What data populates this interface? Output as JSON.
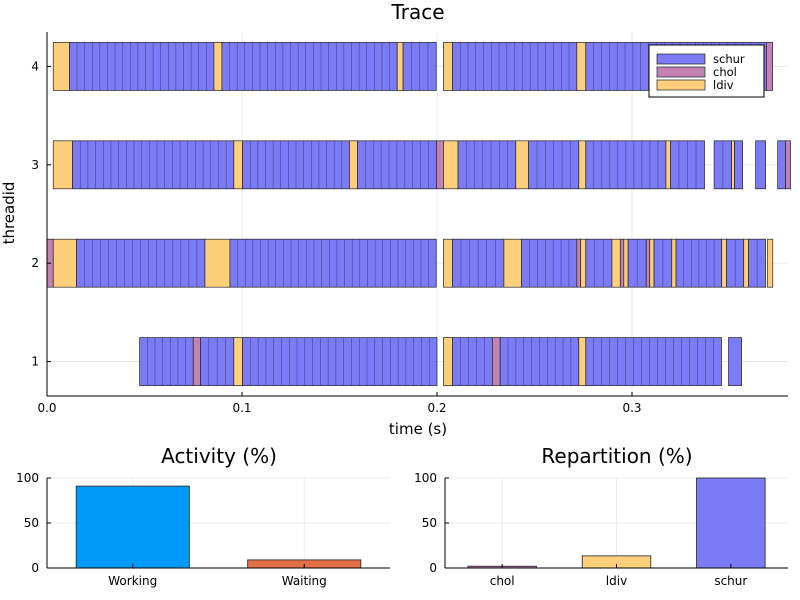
{
  "chart_data": [
    {
      "type": "timeline",
      "title": "Trace",
      "xlabel": "time (s)",
      "ylabel": "threadid",
      "xlim": [
        0,
        0.38
      ],
      "ylim": [
        0.65,
        4.35
      ],
      "xticks": [
        "0.0",
        "0.1",
        "0.2",
        "0.3"
      ],
      "yticks": [
        "1",
        "2",
        "3",
        "4"
      ],
      "grid": true,
      "legend_position": "top-right",
      "legend": [
        "schur",
        "chol",
        "ldiv"
      ],
      "colors": {
        "schur": "#7b7bf6",
        "chol": "#c083b3",
        "ldiv": "#fdcf7b"
      },
      "threads": [
        {
          "id": 4,
          "tasks": [
            {
              "kind": "ldiv",
              "start": 0.0032,
              "end": 0.0115
            },
            {
              "kind": "schur",
              "start": 0.0115,
              "end": 0.0856
            },
            {
              "kind": "ldiv",
              "start": 0.0856,
              "end": 0.0897
            },
            {
              "kind": "schur",
              "start": 0.0897,
              "end": 0.1796
            },
            {
              "kind": "ldiv",
              "start": 0.1796,
              "end": 0.1826
            },
            {
              "kind": "schur",
              "start": 0.1826,
              "end": 0.1996
            },
            {
              "kind": "ldiv",
              "start": 0.2033,
              "end": 0.2079
            },
            {
              "kind": "schur",
              "start": 0.2079,
              "end": 0.2717
            },
            {
              "kind": "ldiv",
              "start": 0.2717,
              "end": 0.2763
            },
            {
              "kind": "schur",
              "start": 0.2763,
              "end": 0.3689
            },
            {
              "kind": "chol",
              "start": 0.3689,
              "end": 0.3721
            }
          ]
        },
        {
          "id": 3,
          "tasks": [
            {
              "kind": "ldiv",
              "start": 0.0032,
              "end": 0.0131
            },
            {
              "kind": "schur",
              "start": 0.0131,
              "end": 0.0958
            },
            {
              "kind": "ldiv",
              "start": 0.0958,
              "end": 0.1003
            },
            {
              "kind": "schur",
              "start": 0.1003,
              "end": 0.1551
            },
            {
              "kind": "ldiv",
              "start": 0.1551,
              "end": 0.1592
            },
            {
              "kind": "schur",
              "start": 0.1592,
              "end": 0.1997
            },
            {
              "kind": "chol",
              "start": 0.1997,
              "end": 0.2033
            },
            {
              "kind": "ldiv",
              "start": 0.2033,
              "end": 0.2108
            },
            {
              "kind": "schur",
              "start": 0.2108,
              "end": 0.2404
            },
            {
              "kind": "ldiv",
              "start": 0.2404,
              "end": 0.247
            },
            {
              "kind": "schur",
              "start": 0.247,
              "end": 0.2727
            },
            {
              "kind": "ldiv",
              "start": 0.2727,
              "end": 0.2763
            },
            {
              "kind": "schur",
              "start": 0.2763,
              "end": 0.3174
            },
            {
              "kind": "ldiv",
              "start": 0.3174,
              "end": 0.3197
            },
            {
              "kind": "schur",
              "start": 0.3197,
              "end": 0.3372
            },
            {
              "kind": "schur",
              "start": 0.3421,
              "end": 0.3511
            },
            {
              "kind": "ldiv",
              "start": 0.3511,
              "end": 0.3526
            },
            {
              "kind": "schur",
              "start": 0.3526,
              "end": 0.3567
            },
            {
              "kind": "schur",
              "start": 0.3634,
              "end": 0.3685
            },
            {
              "kind": "schur",
              "start": 0.3747,
              "end": 0.3788
            },
            {
              "kind": "chol",
              "start": 0.3788,
              "end": 0.3813
            }
          ]
        },
        {
          "id": 2,
          "tasks": [
            {
              "kind": "chol",
              "start": 0.0,
              "end": 0.0032
            },
            {
              "kind": "ldiv",
              "start": 0.0032,
              "end": 0.0151
            },
            {
              "kind": "schur",
              "start": 0.0151,
              "end": 0.081
            },
            {
              "kind": "ldiv",
              "start": 0.081,
              "end": 0.0938
            },
            {
              "kind": "schur",
              "start": 0.0938,
              "end": 0.1996
            },
            {
              "kind": "ldiv",
              "start": 0.2033,
              "end": 0.2079
            },
            {
              "kind": "schur",
              "start": 0.2079,
              "end": 0.2343
            },
            {
              "kind": "ldiv",
              "start": 0.2343,
              "end": 0.2434
            },
            {
              "kind": "schur",
              "start": 0.2434,
              "end": 0.2717
            },
            {
              "kind": "chol",
              "start": 0.2717,
              "end": 0.2737
            },
            {
              "kind": "ldiv",
              "start": 0.2737,
              "end": 0.2763
            },
            {
              "kind": "schur",
              "start": 0.2763,
              "end": 0.2897
            },
            {
              "kind": "ldiv",
              "start": 0.2897,
              "end": 0.294
            },
            {
              "kind": "chol",
              "start": 0.294,
              "end": 0.2958
            },
            {
              "kind": "ldiv",
              "start": 0.2958,
              "end": 0.298
            },
            {
              "kind": "schur",
              "start": 0.298,
              "end": 0.3073
            },
            {
              "kind": "chol",
              "start": 0.3073,
              "end": 0.3091
            },
            {
              "kind": "ldiv",
              "start": 0.3091,
              "end": 0.3113
            },
            {
              "kind": "schur",
              "start": 0.3113,
              "end": 0.3204
            },
            {
              "kind": "ldiv",
              "start": 0.3204,
              "end": 0.3226
            },
            {
              "kind": "schur",
              "start": 0.3226,
              "end": 0.346
            },
            {
              "kind": "ldiv",
              "start": 0.346,
              "end": 0.3485
            },
            {
              "kind": "schur",
              "start": 0.3485,
              "end": 0.3573
            },
            {
              "kind": "ldiv",
              "start": 0.3573,
              "end": 0.3598
            },
            {
              "kind": "schur",
              "start": 0.3598,
              "end": 0.3685
            },
            {
              "kind": "ldiv",
              "start": 0.3695,
              "end": 0.3722
            }
          ]
        },
        {
          "id": 1,
          "tasks": [
            {
              "kind": "schur",
              "start": 0.0475,
              "end": 0.075
            },
            {
              "kind": "chol",
              "start": 0.075,
              "end": 0.0787
            },
            {
              "kind": "schur",
              "start": 0.0787,
              "end": 0.0958
            },
            {
              "kind": "ldiv",
              "start": 0.0958,
              "end": 0.1003
            },
            {
              "kind": "schur",
              "start": 0.1003,
              "end": 0.2
            },
            {
              "kind": "ldiv",
              "start": 0.2033,
              "end": 0.2079
            },
            {
              "kind": "schur",
              "start": 0.2079,
              "end": 0.2284
            },
            {
              "kind": "chol",
              "start": 0.2284,
              "end": 0.2324
            },
            {
              "kind": "schur",
              "start": 0.2324,
              "end": 0.2727
            },
            {
              "kind": "ldiv",
              "start": 0.2727,
              "end": 0.2763
            },
            {
              "kind": "schur",
              "start": 0.2763,
              "end": 0.3459
            },
            {
              "kind": "schur",
              "start": 0.3495,
              "end": 0.3562
            }
          ]
        }
      ]
    },
    {
      "type": "bar",
      "title": "Activity (%)",
      "categories": [
        "Working",
        "Waiting"
      ],
      "values": [
        91,
        9
      ],
      "ylim": [
        0,
        100
      ],
      "yticks": [
        "0",
        "50",
        "100"
      ],
      "colors": [
        "#009af9",
        "#e26f46"
      ],
      "grid": true
    },
    {
      "type": "bar",
      "title": "Repartition (%)",
      "categories": [
        "chol",
        "ldiv",
        "schur"
      ],
      "values": [
        2,
        13.5,
        100
      ],
      "ylim": [
        0,
        100
      ],
      "yticks": [
        "0",
        "50",
        "100"
      ],
      "colors": [
        "#c083b3",
        "#fdcf7b",
        "#7b7bf6"
      ],
      "grid": true
    }
  ]
}
